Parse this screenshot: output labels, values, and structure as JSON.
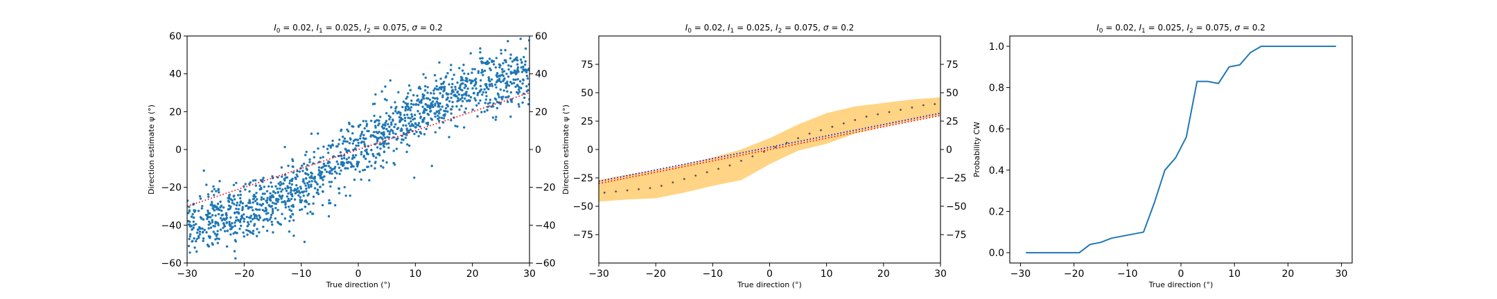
{
  "chart_data": [
    {
      "type": "scatter",
      "title": "$I_0 = 0.02$, $I_1 = 0.025$, $I_2 = 0.075$, $\\sigma = 0.2$",
      "title_parts": [
        [
          "I",
          "0",
          " = 0.02, "
        ],
        [
          "I",
          "1",
          " = 0.025, "
        ],
        [
          "I",
          "2",
          " = 0.075, "
        ],
        [
          "σ",
          "",
          " = 0.2"
        ]
      ],
      "xlabel": "True direction (°)",
      "ylabel": "Direction estimate ψ (°)",
      "xlim": [
        -30,
        30
      ],
      "ylim": [
        -60,
        60
      ],
      "xticks": [
        "−30",
        "−20",
        "−10",
        "0",
        "10",
        "20",
        "30"
      ],
      "yticks": [
        "−60",
        "−40",
        "−20",
        "0",
        "20",
        "40",
        "60"
      ],
      "right_yticks": [
        "−60",
        "−40",
        "−20",
        "0",
        "20",
        "40",
        "60"
      ],
      "scatter_color": "#1f77b4",
      "reference_line": {
        "x": [
          -30,
          30
        ],
        "y": [
          -30,
          30
        ],
        "color": "#ff0000",
        "style": "dotted"
      },
      "trend": {
        "x": [
          -30,
          -25,
          -20,
          -15,
          -10,
          -5,
          0,
          5,
          10,
          15,
          20,
          25,
          30
        ],
        "y": [
          -41,
          -37,
          -32,
          -27,
          -19,
          -10,
          0,
          10,
          19,
          27,
          32,
          37,
          41
        ]
      },
      "spread_sd": 8
    },
    {
      "type": "line",
      "title": "$I_0 = 0.02$, $I_1 = 0.025$, $I_2 = 0.075$, $\\sigma = 0.2$",
      "title_parts": [
        [
          "I",
          "0",
          " = 0.02, "
        ],
        [
          "I",
          "1",
          " = 0.025, "
        ],
        [
          "I",
          "2",
          " = 0.075, "
        ],
        [
          "σ",
          "",
          " = 0.2"
        ]
      ],
      "xlabel": "True direction (°)",
      "ylabel": "Direction estimate ψ (°)",
      "xlim": [
        -30,
        30
      ],
      "ylim": [
        -100,
        100
      ],
      "xticks": [
        "−30",
        "−20",
        "−10",
        "0",
        "10",
        "20",
        "30"
      ],
      "yticks": [
        "−75",
        "−50",
        "−25",
        "0",
        "25",
        "50",
        "75"
      ],
      "right_yticks": [
        "−75",
        "−50",
        "−25",
        "0",
        "25",
        "50",
        "75"
      ],
      "band_color": "#ffb732",
      "band": {
        "x": [
          -30,
          -25,
          -20,
          -15,
          -10,
          -5,
          0,
          5,
          10,
          15,
          20,
          25,
          30
        ],
        "upper": [
          -27,
          -22,
          -18,
          -13,
          -7,
          0,
          10,
          22,
          32,
          38,
          41,
          44,
          46
        ],
        "lower": [
          -46,
          -44,
          -43,
          -38,
          -32,
          -27,
          -13,
          -1,
          5,
          14,
          20,
          25,
          30
        ]
      },
      "mean_points": {
        "x": [
          -29,
          -27,
          -25,
          -23,
          -21,
          -19,
          -17,
          -15,
          -13,
          -11,
          -9,
          -7,
          -5,
          -3,
          -1,
          1,
          3,
          5,
          7,
          9,
          11,
          13,
          15,
          17,
          19,
          21,
          23,
          25,
          27,
          29
        ],
        "y": [
          -38,
          -37,
          -36,
          -35,
          -34,
          -32,
          -29,
          -26,
          -23,
          -20,
          -17,
          -14,
          -10,
          -6,
          -2,
          2,
          6,
          10,
          14,
          17,
          20,
          23,
          26,
          29,
          31,
          33,
          35,
          37,
          39,
          40
        ],
        "color": "#555555"
      },
      "reference_lines": [
        {
          "x": [
            -30,
            30
          ],
          "y": [
            -30,
            30
          ],
          "color": "#ff0000"
        },
        {
          "x": [
            -30,
            30
          ],
          "y": [
            -28,
            32
          ],
          "color": "#0000ff"
        }
      ]
    },
    {
      "type": "line",
      "title": "$I_0 = 0.02$, $I_1 = 0.025$, $I_2 = 0.075$, $\\sigma = 0.2$",
      "title_parts": [
        [
          "I",
          "0",
          " = 0.02, "
        ],
        [
          "I",
          "1",
          " = 0.025, "
        ],
        [
          "I",
          "2",
          " = 0.075, "
        ],
        [
          "σ",
          "",
          " = 0.2"
        ]
      ],
      "xlabel": "True direction (°)",
      "ylabel": "Probability CW",
      "xlim": [
        -32,
        32
      ],
      "ylim": [
        -0.05,
        1.05
      ],
      "xticks": [
        "−30",
        "−20",
        "−10",
        "0",
        "10",
        "20",
        "30"
      ],
      "yticks": [
        "0.0",
        "0.2",
        "0.4",
        "0.6",
        "0.8",
        "1.0"
      ],
      "line_color": "#1f77b4",
      "x": [
        -29,
        -27,
        -25,
        -23,
        -21,
        -19,
        -17,
        -15,
        -13,
        -11,
        -9,
        -7,
        -5,
        -3,
        -1,
        1,
        3,
        5,
        7,
        9,
        11,
        13,
        15,
        17,
        19,
        21,
        23,
        25,
        27,
        29
      ],
      "y": [
        0.0,
        0.0,
        0.0,
        0.0,
        0.0,
        0.0,
        0.04,
        0.05,
        0.07,
        0.08,
        0.09,
        0.1,
        0.24,
        0.4,
        0.46,
        0.56,
        0.83,
        0.83,
        0.82,
        0.9,
        0.91,
        0.97,
        1.0,
        1.0,
        1.0,
        1.0,
        1.0,
        1.0,
        1.0,
        1.0
      ]
    }
  ]
}
